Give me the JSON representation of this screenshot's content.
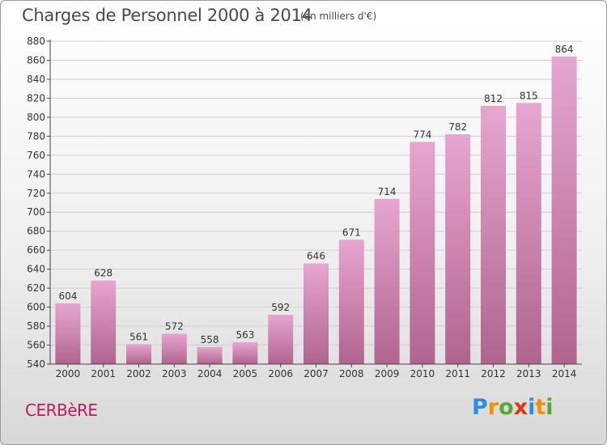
{
  "header": {
    "title": "Charges de Personnel 2000 à 2014",
    "subtitle": "(en milliers d'€)"
  },
  "footer": {
    "commune": "CERBèRE",
    "logo_letters": [
      "P",
      "r",
      "o",
      "x",
      "i",
      "t",
      "i"
    ],
    "logo_colors": [
      "#2d8fd9",
      "#f39200",
      "#5aa832",
      "#e63312",
      "#2d8fd9",
      "#f39200",
      "#5aa832"
    ]
  },
  "colors": {
    "bar_top": "#e6a6cf",
    "bar_bottom": "#b0648f",
    "grid": "#d0d0d0",
    "axis": "#444444",
    "text": "#333333"
  },
  "chart_data": {
    "type": "bar",
    "title": "Charges de Personnel 2000 à 2014",
    "subtitle": "(en milliers d'€)",
    "categories": [
      "2000",
      "2001",
      "2002",
      "2003",
      "2004",
      "2005",
      "2006",
      "2007",
      "2008",
      "2009",
      "2010",
      "2011",
      "2012",
      "2013",
      "2014"
    ],
    "values": [
      604,
      628,
      561,
      572,
      558,
      563,
      592,
      646,
      671,
      714,
      774,
      782,
      812,
      815,
      864
    ],
    "ylim": [
      540,
      880
    ],
    "yticks": [
      540,
      560,
      580,
      600,
      620,
      640,
      660,
      680,
      700,
      720,
      740,
      760,
      780,
      800,
      820,
      840,
      860,
      880
    ],
    "grid": true,
    "data_labels": true
  }
}
